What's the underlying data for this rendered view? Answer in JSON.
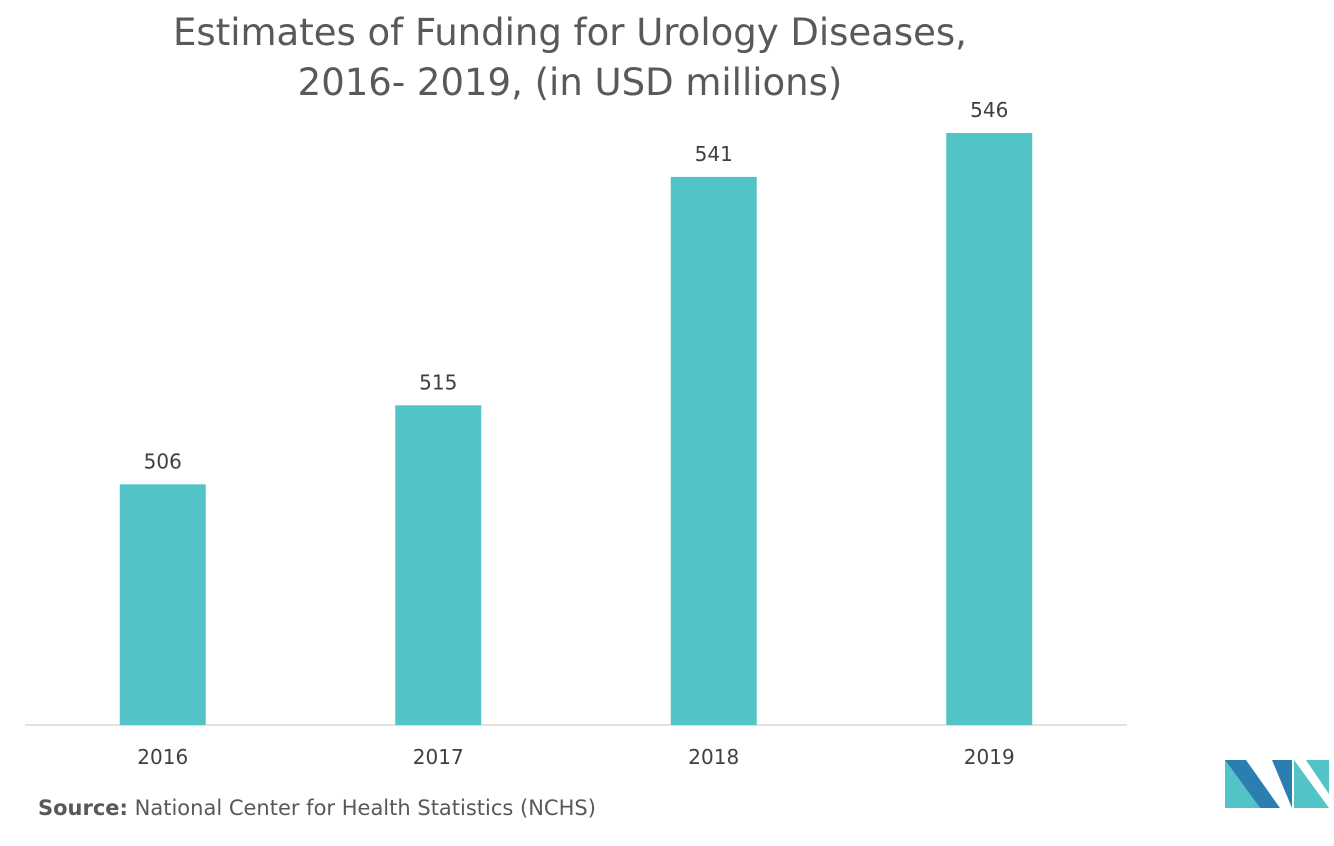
{
  "chart_data": {
    "type": "bar",
    "title_line1": "Estimates of Funding for Urology Diseases,",
    "title_line2": "2016- 2019, (in USD millions)",
    "categories": [
      "2016",
      "2017",
      "2018",
      "2019"
    ],
    "values": [
      506,
      515,
      541,
      546
    ],
    "xlabel": "",
    "ylabel": "",
    "bar_color": "#52c3c7",
    "grid": false,
    "legend": "none"
  },
  "source": {
    "label": "Source:",
    "text": "National Center for Health Statistics (NCHS)"
  },
  "colors": {
    "text": "#595959",
    "axis": "#d9d9d9",
    "logo_dark": "#2b7fb0",
    "logo_light": "#52c3c7"
  }
}
